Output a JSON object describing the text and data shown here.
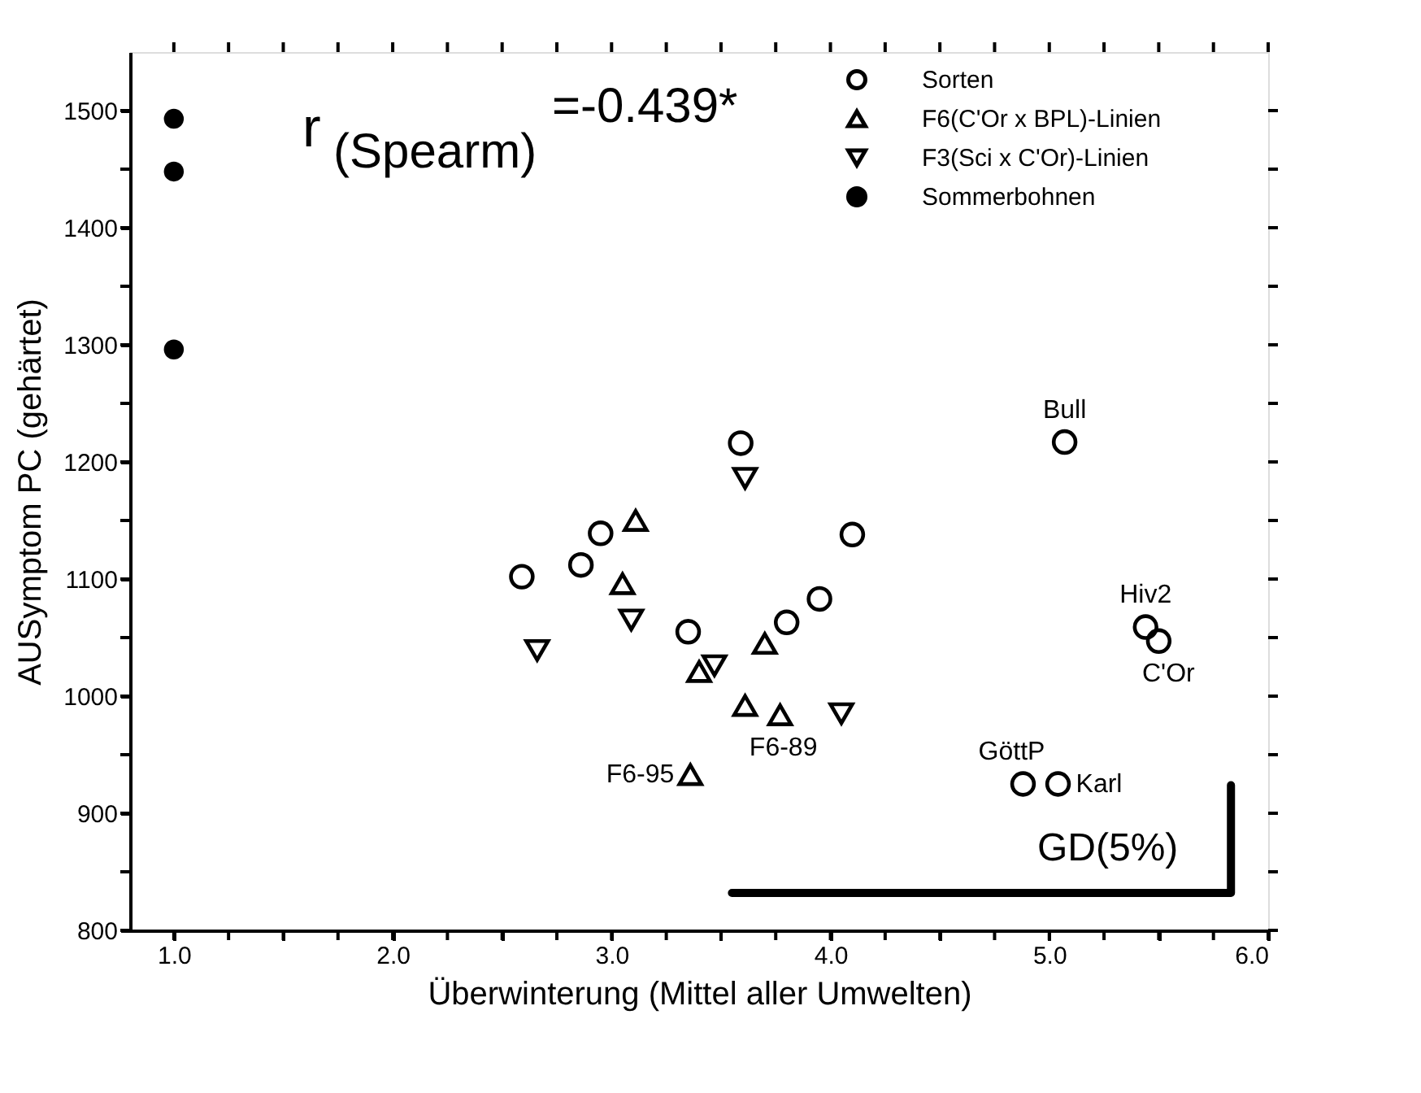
{
  "chart_data": {
    "type": "scatter",
    "xlabel": "Überwinterung (Mittel aller Umwelten)",
    "ylabel": "AUSymptom PC (gehärtet)",
    "xlim": [
      0.8,
      6.0
    ],
    "xticks": [
      {
        "value": 1,
        "label": "1.0"
      },
      {
        "value": 1.25,
        "label": null
      },
      {
        "value": 1.5,
        "label": null
      },
      {
        "value": 1.75,
        "label": null
      },
      {
        "value": 2,
        "label": "2.0"
      },
      {
        "value": 2.25,
        "label": null
      },
      {
        "value": 2.5,
        "label": null
      },
      {
        "value": 2.75,
        "label": null
      },
      {
        "value": 3,
        "label": "3.0"
      },
      {
        "value": 3.25,
        "label": null
      },
      {
        "value": 3.5,
        "label": null
      },
      {
        "value": 3.75,
        "label": null
      },
      {
        "value": 4,
        "label": "4.0"
      },
      {
        "value": 4.25,
        "label": null
      },
      {
        "value": 4.5,
        "label": null
      },
      {
        "value": 4.75,
        "label": null
      },
      {
        "value": 5,
        "label": "5.0"
      },
      {
        "value": 5.25,
        "label": null
      },
      {
        "value": 5.5,
        "label": null
      },
      {
        "value": 5.75,
        "label": null
      },
      {
        "value": 6,
        "label": "6.0"
      }
    ],
    "ylim": [
      800,
      1550
    ],
    "yticks": [
      800,
      {
        "value": 850,
        "label": null
      },
      900,
      {
        "value": 950,
        "label": null
      },
      1000,
      {
        "value": 1050,
        "label": null
      },
      1100,
      {
        "value": 1150,
        "label": null
      },
      1200,
      {
        "value": 1250,
        "label": null
      },
      1300,
      {
        "value": 1350,
        "label": null
      },
      1400,
      {
        "value": 1450,
        "label": null
      },
      1500
    ],
    "grid": false,
    "legend": "top right",
    "series": [
      {
        "name": "Sorten",
        "color": "#000000",
        "marker": "circle",
        "x": [
          2.59,
          2.86,
          2.95,
          3.35,
          3.59,
          3.8,
          3.95,
          4.1,
          5.07,
          5.44,
          5.5,
          4.88,
          5.04
        ],
        "values": [
          1102,
          1112,
          1139,
          1055,
          1216,
          1063,
          1083,
          1138,
          1217,
          1059,
          1047,
          925,
          925
        ]
      },
      {
        "name": "F6(C'Or x BPL)-Linien",
        "color": "#000000",
        "marker": "triangle",
        "x": [
          3.11,
          3.05,
          3.4,
          3.61,
          3.77,
          3.7,
          3.36
        ],
        "values": [
          1150,
          1096,
          1021,
          992,
          984,
          1045,
          933
        ]
      },
      {
        "name": "F3(Sci x C'Or)-Linien",
        "color": "#000000",
        "marker": "triangle-down",
        "x": [
          2.66,
          3.09,
          3.61,
          3.47,
          4.05
        ],
        "values": [
          1039,
          1065,
          1186,
          1026,
          985
        ]
      },
      {
        "name": "Sommerbohnen",
        "color": "#000000",
        "marker": "circle",
        "x": [
          1.0,
          1.0,
          1.0
        ],
        "values": [
          1493,
          1448,
          1296
        ]
      },
      {
        "type": "line",
        "color": "#000000",
        "line_style": "solid",
        "x": [
          3.55,
          5.83,
          5.83
        ],
        "values": [
          832,
          832,
          924
        ]
      }
    ],
    "annotations": [
      "r$_{(Spearm)}$$^{=-0.439*}$",
      "GD(5%)",
      {
        "text": "F6-95",
        "x": 3.36,
        "y": 933
      },
      {
        "text": "F6-89",
        "x": 3.77,
        "y": 984
      },
      {
        "text": "Bull",
        "x": 5.07,
        "y": 1217
      },
      {
        "text": "Hiv2",
        "x": 5.44,
        "y": 1059
      },
      {
        "text": "C'Or",
        "x": 5.5,
        "y": 1047
      },
      {
        "text": "GöttP",
        "x": 4.88,
        "y": 925
      },
      {
        "text": "Karl",
        "x": 5.04,
        "y": 925
      }
    ]
  }
}
